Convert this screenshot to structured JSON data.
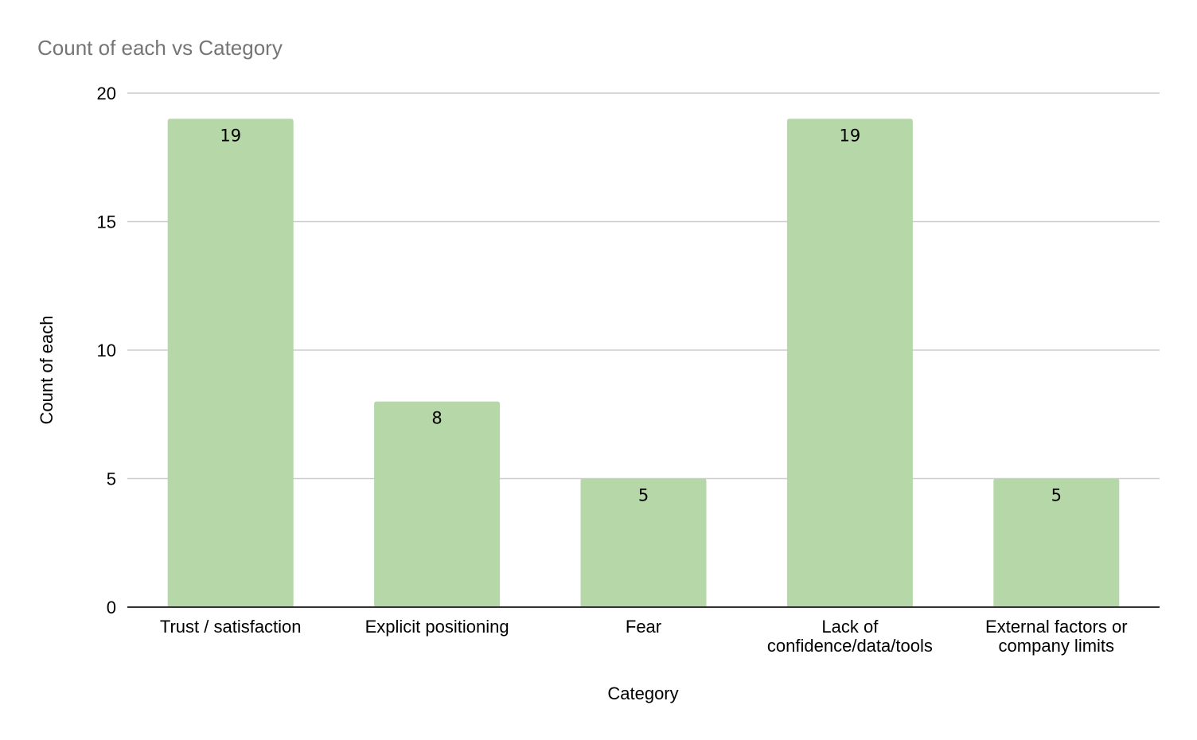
{
  "chart_data": {
    "type": "bar",
    "title": "Count of each vs Category",
    "xlabel": "Category",
    "ylabel": "Count of each",
    "categories": [
      [
        "Trust / satisfaction"
      ],
      [
        "Explicit positioning"
      ],
      [
        "Fear"
      ],
      [
        "Lack of",
        "confidence/data/tools"
      ],
      [
        "External factors or",
        "company limits"
      ]
    ],
    "values": [
      19,
      8,
      5,
      19,
      5
    ],
    "data_labels": [
      "19",
      "8",
      "5",
      "19",
      "5"
    ],
    "ylim": [
      0,
      20
    ],
    "yticks": [
      0,
      5,
      10,
      15,
      20
    ],
    "grid": true,
    "legend": "none",
    "bar_color": "#b6d7a8"
  }
}
